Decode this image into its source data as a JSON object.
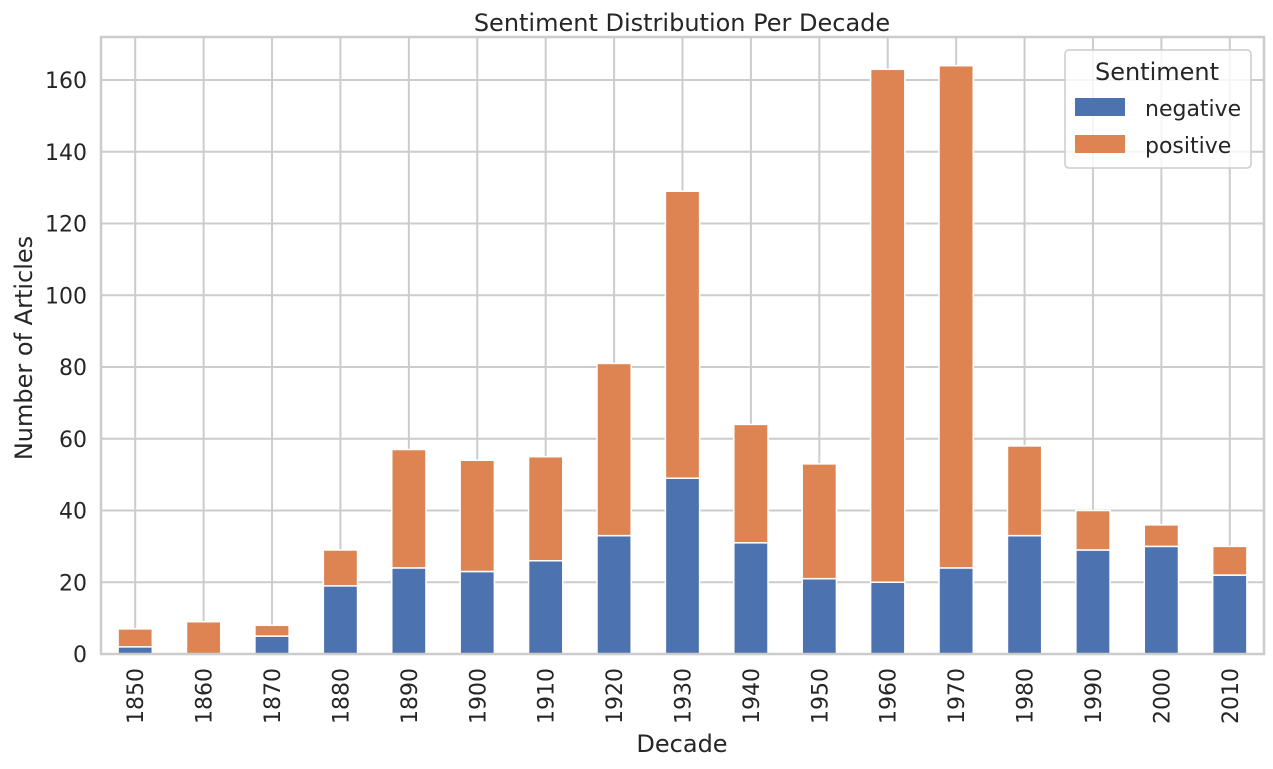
{
  "chart_data": {
    "type": "bar",
    "stacked": true,
    "title": "Sentiment Distribution Per Decade",
    "xlabel": "Decade",
    "ylabel": "Number of Articles",
    "categories": [
      "1850",
      "1860",
      "1870",
      "1880",
      "1890",
      "1900",
      "1910",
      "1920",
      "1930",
      "1940",
      "1950",
      "1960",
      "1970",
      "1980",
      "1990",
      "2000",
      "2010"
    ],
    "series": [
      {
        "name": "negative",
        "color": "#4C72B0",
        "values": [
          2,
          0,
          5,
          19,
          24,
          23,
          26,
          33,
          49,
          31,
          21,
          20,
          24,
          33,
          29,
          30,
          22
        ]
      },
      {
        "name": "positive",
        "color": "#DD8452",
        "values": [
          5,
          9,
          3,
          10,
          33,
          31,
          29,
          48,
          80,
          33,
          32,
          143,
          140,
          25,
          11,
          6,
          8
        ]
      }
    ],
    "ylim": [
      0,
      172
    ],
    "yticks": [
      0,
      20,
      40,
      60,
      80,
      100,
      120,
      140,
      160
    ],
    "grid": true,
    "legend": {
      "title": "Sentiment",
      "placement": "top-right"
    }
  }
}
